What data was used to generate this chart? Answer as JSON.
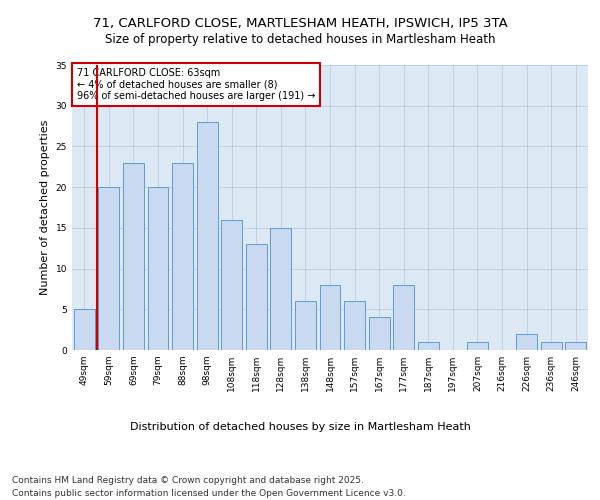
{
  "title1": "71, CARLFORD CLOSE, MARTLESHAM HEATH, IPSWICH, IP5 3TA",
  "title2": "Size of property relative to detached houses in Martlesham Heath",
  "xlabel": "Distribution of detached houses by size in Martlesham Heath",
  "ylabel": "Number of detached properties",
  "categories": [
    "49sqm",
    "59sqm",
    "69sqm",
    "79sqm",
    "88sqm",
    "98sqm",
    "108sqm",
    "118sqm",
    "128sqm",
    "138sqm",
    "148sqm",
    "157sqm",
    "167sqm",
    "177sqm",
    "187sqm",
    "197sqm",
    "207sqm",
    "216sqm",
    "226sqm",
    "236sqm",
    "246sqm"
  ],
  "values": [
    5,
    20,
    23,
    20,
    23,
    28,
    16,
    13,
    15,
    6,
    8,
    6,
    4,
    8,
    1,
    0,
    1,
    0,
    2,
    1,
    1
  ],
  "bar_color": "#c9d9f0",
  "bar_edge_color": "#5b9bd5",
  "highlight_line_color": "#cc0000",
  "annotation_text": "71 CARLFORD CLOSE: 63sqm\n← 4% of detached houses are smaller (8)\n96% of semi-detached houses are larger (191) →",
  "annotation_box_color": "#ffffff",
  "annotation_box_edge": "#cc0000",
  "footer": "Contains HM Land Registry data © Crown copyright and database right 2025.\nContains public sector information licensed under the Open Government Licence v3.0.",
  "ylim": [
    0,
    35
  ],
  "plot_bg_color": "#dde8f5",
  "title_fontsize": 9.5,
  "subtitle_fontsize": 8.5,
  "tick_fontsize": 6.5,
  "ylabel_fontsize": 8,
  "xlabel_fontsize": 8,
  "footer_fontsize": 6.5
}
